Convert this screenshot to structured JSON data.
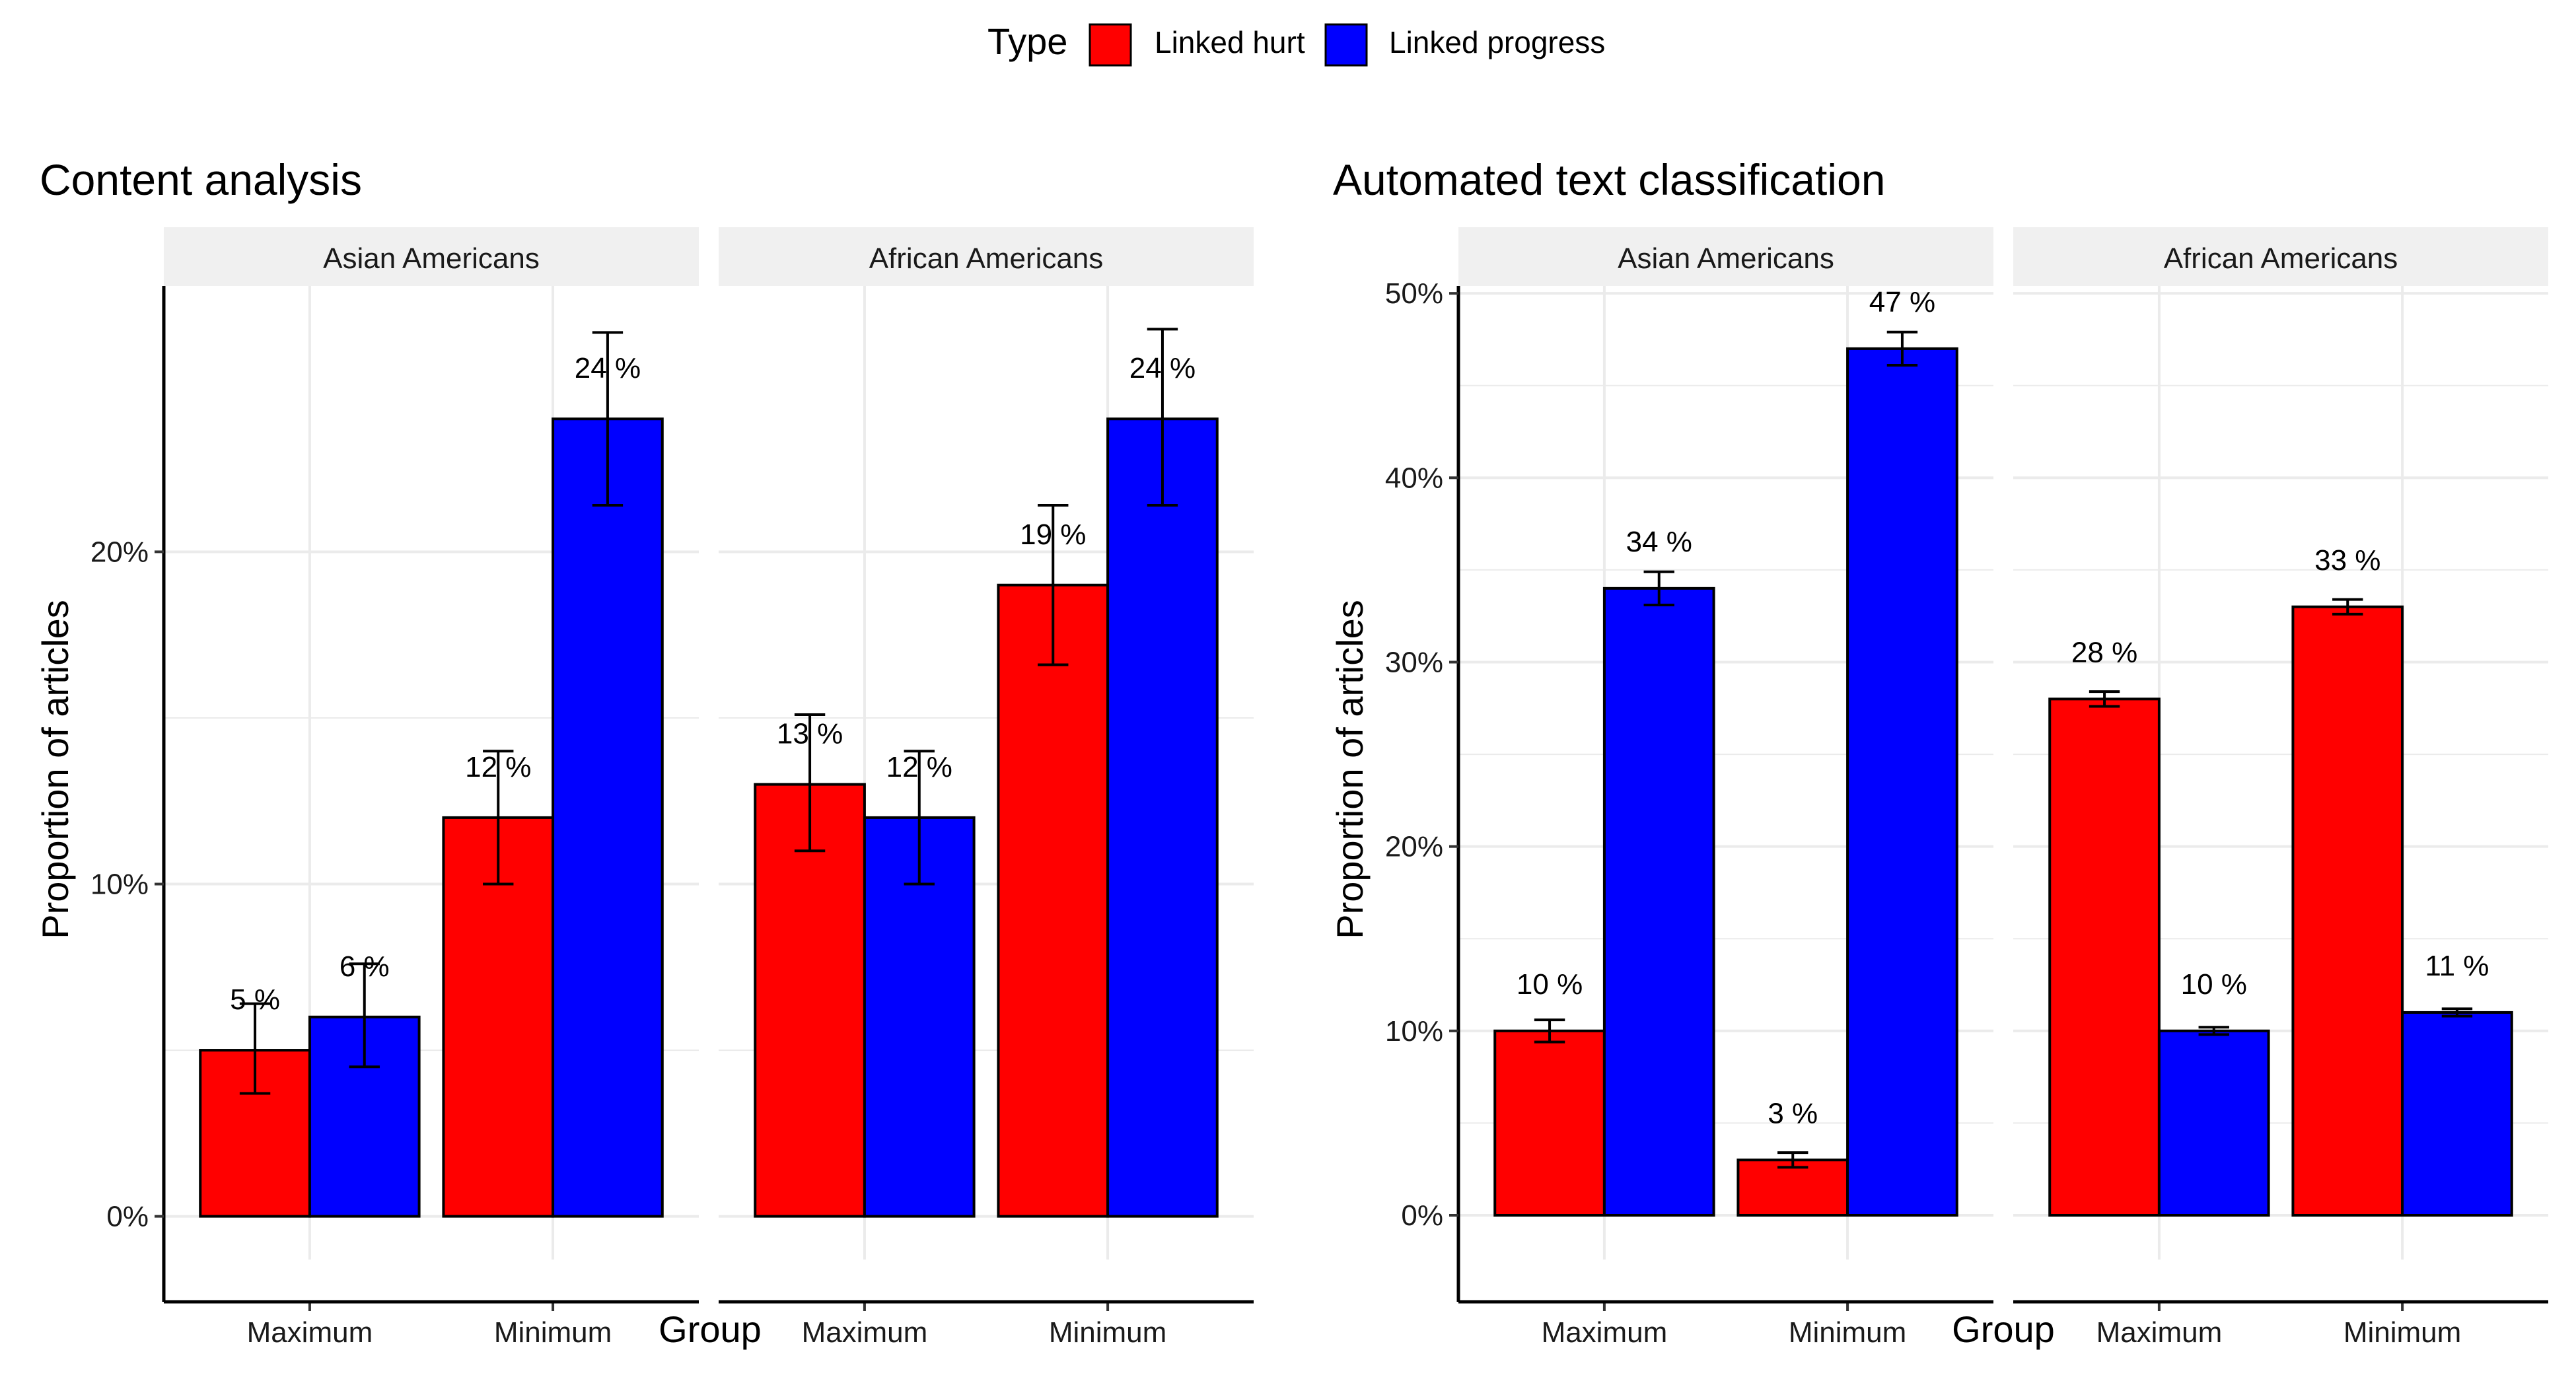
{
  "legend": {
    "title": "Type",
    "position": "top",
    "items": [
      {
        "label": "Linked hurt",
        "color": "#FF0000"
      },
      {
        "label": "Linked progress",
        "color": "#0000FF"
      }
    ]
  },
  "colors": {
    "linked_hurt": "#FF0000",
    "linked_progress": "#0000FF",
    "strip": "#F0F0F0",
    "grid": "#EBEBEB"
  },
  "chart_data": [
    {
      "type": "bar",
      "title": "Content analysis",
      "xlabel": "Group",
      "ylabel": "Proportion of articles",
      "ylim": [
        -0.013,
        0.28
      ],
      "yticks": [
        0,
        0.1,
        0.2
      ],
      "ytick_labels": [
        "0%",
        "10%",
        "20%"
      ],
      "grid": true,
      "facets": [
        {
          "label": "Asian Americans",
          "categories": [
            "Maximum",
            "Minimum"
          ],
          "series": [
            {
              "name": "Linked hurt",
              "values": [
                0.05,
                0.12
              ],
              "err_low": [
                0.037,
                0.1
              ],
              "err_high": [
                0.064,
                0.14
              ],
              "labels": [
                "5 %",
                "12 %"
              ]
            },
            {
              "name": "Linked progress",
              "values": [
                0.06,
                0.24
              ],
              "err_low": [
                0.045,
                0.214
              ],
              "err_high": [
                0.076,
                0.266
              ],
              "labels": [
                "6 %",
                "24 %"
              ]
            }
          ]
        },
        {
          "label": "African Americans",
          "categories": [
            "Maximum",
            "Minimum"
          ],
          "series": [
            {
              "name": "Linked hurt",
              "values": [
                0.13,
                0.19
              ],
              "err_low": [
                0.11,
                0.166
              ],
              "err_high": [
                0.151,
                0.214
              ],
              "labels": [
                "13 %",
                "19 %"
              ]
            },
            {
              "name": "Linked progress",
              "values": [
                0.12,
                0.24
              ],
              "err_low": [
                0.1,
                0.214
              ],
              "err_high": [
                0.14,
                0.267
              ],
              "labels": [
                "12 %",
                "24 %"
              ]
            }
          ]
        }
      ]
    },
    {
      "type": "bar",
      "title": "Automated text classification",
      "xlabel": "Group",
      "ylabel": "Proportion of articles",
      "ylim": [
        -0.024,
        0.504
      ],
      "yticks": [
        0,
        0.1,
        0.2,
        0.3,
        0.4,
        0.5
      ],
      "ytick_labels": [
        "0%",
        "10%",
        "20%",
        "30%",
        "40%",
        "50%"
      ],
      "grid": true,
      "facets": [
        {
          "label": "Asian Americans",
          "categories": [
            "Maximum",
            "Minimum"
          ],
          "series": [
            {
              "name": "Linked hurt",
              "values": [
                0.1,
                0.03
              ],
              "err_low": [
                0.094,
                0.026
              ],
              "err_high": [
                0.106,
                0.034
              ],
              "labels": [
                "10 %",
                "3 %"
              ]
            },
            {
              "name": "Linked progress",
              "values": [
                0.34,
                0.47
              ],
              "err_low": [
                0.331,
                0.461
              ],
              "err_high": [
                0.349,
                0.479
              ],
              "labels": [
                "34 %",
                "47 %"
              ]
            }
          ]
        },
        {
          "label": "African Americans",
          "categories": [
            "Maximum",
            "Minimum"
          ],
          "series": [
            {
              "name": "Linked hurt",
              "values": [
                0.28,
                0.33
              ],
              "err_low": [
                0.276,
                0.326
              ],
              "err_high": [
                0.284,
                0.334
              ],
              "labels": [
                "28 %",
                "33 %"
              ]
            },
            {
              "name": "Linked progress",
              "values": [
                0.1,
                0.11
              ],
              "err_low": [
                0.098,
                0.108
              ],
              "err_high": [
                0.102,
                0.112
              ],
              "labels": [
                "10 %",
                "11 %"
              ]
            }
          ]
        }
      ]
    }
  ]
}
